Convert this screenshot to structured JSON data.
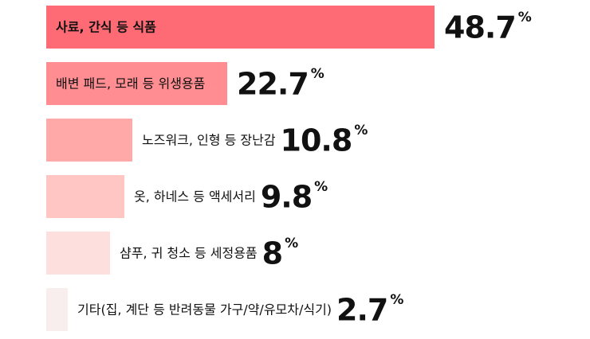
{
  "chart_data": {
    "type": "bar",
    "orientation": "horizontal",
    "categories": [
      "사료, 간식 등 식품",
      "배변 패드, 모래 등 위생용품",
      "노즈워크, 인형 등 장난감",
      "옷, 하네스 등 액세서리",
      "샴푸, 귀 청소 등 세정용품",
      "기타(집, 계단 등 반려동물 가구/약/유모차/식기)"
    ],
    "values": [
      48.7,
      22.7,
      10.8,
      9.8,
      8,
      2.7
    ],
    "unit": "%",
    "colors": [
      "#ff6b75",
      "#ff8d91",
      "#ffaaa8",
      "#ffc6c4",
      "#fde0de",
      "#f9eeee"
    ],
    "xlim": [
      0,
      50
    ]
  }
}
